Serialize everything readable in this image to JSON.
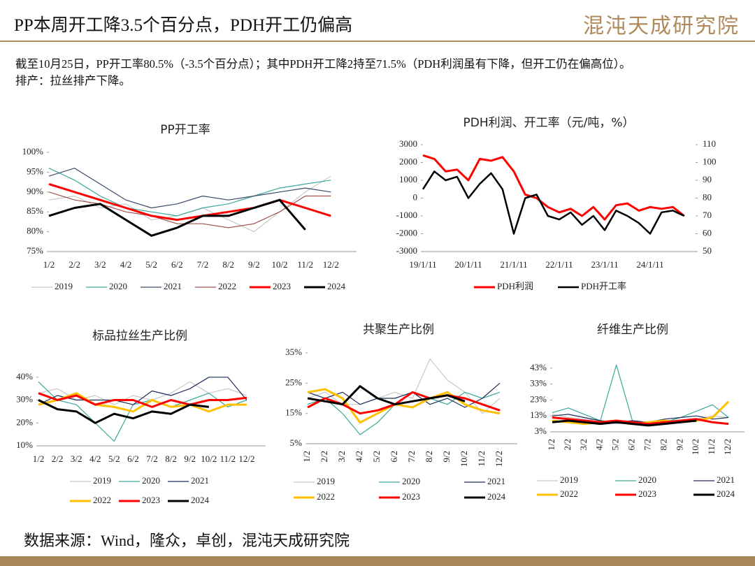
{
  "header": {
    "title": "PP本周开工降3.5个百分点，PDH开工仍偏高",
    "logo": "混沌天成研究院"
  },
  "text": {
    "summary": "截至10月25日，PP开工率80.5%（-3.5个百分点）；其中PDH开工降2持至71.5%（PDH利润虽有下降，但开工仍在偏高位）。",
    "schedule": "排产：拉丝排产下降。"
  },
  "footer": {
    "source": "数据来源：Wind，隆众，卓创，混沌天成研究院"
  },
  "chart_data": [
    {
      "type": "line",
      "title": "PP开工率",
      "legend": "bottom",
      "categories": [
        "1/2",
        "2/2",
        "3/2",
        "4/2",
        "5/2",
        "6/2",
        "7/2",
        "8/2",
        "9/2",
        "10/2",
        "11/2",
        "12/2"
      ],
      "ylim": [
        75,
        100
      ],
      "yticks": [
        {
          "value": 75,
          "label": "75%"
        },
        {
          "value": 80,
          "label": "80%"
        },
        {
          "value": 85,
          "label": "85%"
        },
        {
          "value": 90,
          "label": "90%"
        },
        {
          "value": 95,
          "label": "95%"
        },
        {
          "value": 100,
          "label": "100%"
        }
      ],
      "series": [
        {
          "name": "2019",
          "color": "#c8c8c8",
          "width": 1.2,
          "values": [
            88,
            89,
            86,
            87,
            83,
            84,
            86,
            83,
            80,
            85,
            90,
            94
          ]
        },
        {
          "name": "2020",
          "color": "#3aa89a",
          "width": 1.2,
          "values": [
            96,
            93,
            89,
            86,
            85,
            84,
            86,
            87,
            89,
            91,
            92,
            93
          ]
        },
        {
          "name": "2021",
          "color": "#3c4a6b",
          "width": 1.2,
          "values": [
            94,
            96,
            92,
            88,
            86,
            87,
            89,
            88,
            89,
            90,
            91,
            90
          ]
        },
        {
          "name": "2022",
          "color": "#a0524d",
          "width": 1.2,
          "values": [
            90,
            88,
            87,
            85,
            84,
            82,
            82,
            81,
            82,
            85,
            89,
            89
          ]
        },
        {
          "name": "2023",
          "color": "#ff0000",
          "width": 3,
          "values": [
            92,
            90,
            88,
            86,
            84,
            83,
            84,
            85,
            86,
            88,
            86,
            84
          ]
        },
        {
          "name": "2024",
          "color": "#000000",
          "width": 3,
          "values": [
            84,
            86,
            87,
            83,
            79,
            81,
            84,
            84,
            86,
            88,
            80.5,
            null
          ]
        }
      ]
    },
    {
      "type": "line",
      "title": "PDH利润、开工率（元/吨，%）",
      "legend": "bottom",
      "categories": [
        "19/1/11",
        null,
        null,
        null,
        "20/1/11",
        null,
        null,
        null,
        "21/1/11",
        null,
        null,
        null,
        "22/1/11",
        null,
        null,
        null,
        "23/1/11",
        null,
        null,
        null,
        "24/1/11",
        null,
        null,
        null
      ],
      "ylim": [
        -3000,
        3000
      ],
      "yticks": [
        -3000,
        -2000,
        -1000,
        0,
        1000,
        2000,
        3000
      ],
      "y2lim": [
        50,
        110
      ],
      "y2ticks": [
        50,
        60,
        70,
        80,
        90,
        100,
        110
      ],
      "series": [
        {
          "name": "PDH利润",
          "color": "#ff0000",
          "width": 3,
          "values": [
            2400,
            2200,
            1500,
            1600,
            1000,
            2200,
            2100,
            2300,
            1500,
            200,
            0,
            -500,
            -800,
            -600,
            -1000,
            -500,
            -1200,
            -400,
            -300,
            -700,
            -500,
            -600,
            -500,
            -1000
          ]
        },
        {
          "name": "PDH开工率",
          "color": "#000000",
          "width": 2.5,
          "axis": "y2",
          "values": [
            85,
            95,
            90,
            92,
            80,
            88,
            94,
            85,
            60,
            80,
            82,
            70,
            68,
            72,
            65,
            70,
            62,
            73,
            70,
            66,
            60,
            72,
            73,
            70
          ]
        }
      ]
    },
    {
      "type": "line",
      "title": "标品拉丝生产比例",
      "legend": "bottom",
      "categories": [
        "1/2",
        "2/2",
        "3/2",
        "4/2",
        "5/2",
        "6/2",
        "7/2",
        "8/2",
        "9/2",
        "10/2",
        "11/2",
        "12/2"
      ],
      "ylim": [
        10,
        43
      ],
      "yticks": [
        {
          "value": 10,
          "label": "10%"
        },
        {
          "value": 20,
          "label": "20%"
        },
        {
          "value": 30,
          "label": "30%"
        },
        {
          "value": 40,
          "label": "40%"
        }
      ],
      "series": [
        {
          "name": "2019",
          "color": "#c8c8c8",
          "width": 1.2,
          "values": [
            33,
            35,
            30,
            32,
            28,
            32,
            30,
            33,
            38,
            33,
            35,
            32
          ]
        },
        {
          "name": "2020",
          "color": "#3aa89a",
          "width": 1.2,
          "values": [
            38,
            30,
            28,
            20,
            12,
            28,
            30,
            27,
            30,
            33,
            27,
            30
          ]
        },
        {
          "name": "2021",
          "color": "#1f2f5a",
          "width": 1.2,
          "values": [
            28,
            32,
            30,
            30,
            30,
            28,
            34,
            32,
            35,
            40,
            40,
            30
          ]
        },
        {
          "name": "2022",
          "color": "#ffc000",
          "width": 3,
          "values": [
            28,
            30,
            33,
            28,
            27,
            25,
            30,
            27,
            28,
            25,
            28,
            28
          ]
        },
        {
          "name": "2023",
          "color": "#ff0000",
          "width": 3,
          "values": [
            33,
            30,
            32,
            28,
            30,
            30,
            27,
            30,
            28,
            30,
            30,
            31
          ]
        },
        {
          "name": "2024",
          "color": "#000000",
          "width": 3,
          "values": [
            30,
            26,
            25,
            20,
            24,
            22,
            25,
            24,
            28,
            27,
            null,
            null
          ]
        }
      ]
    },
    {
      "type": "line",
      "title": "共聚生产比例",
      "legend": "bottom",
      "rotate_labels": true,
      "categories": [
        "1/2",
        "2/2",
        "3/2",
        "4/2",
        "5/2",
        "6/2",
        "7/2",
        "8/2",
        "9/2",
        "10/2",
        "11/2",
        "12/2"
      ],
      "ylim": [
        5,
        35
      ],
      "yticks": [
        {
          "value": 5,
          "label": "5%"
        },
        {
          "value": 15,
          "label": "15%"
        },
        {
          "value": 25,
          "label": "25%"
        },
        {
          "value": 35,
          "label": "35%"
        }
      ],
      "series": [
        {
          "name": "2019",
          "color": "#c8c8c8",
          "width": 1.2,
          "values": [
            20,
            22,
            18,
            18,
            20,
            22,
            20,
            33,
            26,
            22,
            15,
            20
          ]
        },
        {
          "name": "2020",
          "color": "#3aa89a",
          "width": 1.2,
          "values": [
            18,
            20,
            15,
            8,
            12,
            18,
            22,
            20,
            18,
            22,
            20,
            22
          ]
        },
        {
          "name": "2021",
          "color": "#1f2f5a",
          "width": 1.2,
          "values": [
            22,
            20,
            22,
            18,
            20,
            20,
            22,
            18,
            20,
            17,
            20,
            25
          ]
        },
        {
          "name": "2022",
          "color": "#ffc000",
          "width": 3,
          "values": [
            22,
            23,
            20,
            12,
            15,
            18,
            17,
            20,
            22,
            18,
            16,
            15
          ]
        },
        {
          "name": "2023",
          "color": "#ff0000",
          "width": 3,
          "values": [
            17,
            20,
            18,
            15,
            16,
            18,
            22,
            20,
            21,
            20,
            18,
            16
          ]
        },
        {
          "name": "2024",
          "color": "#000000",
          "width": 3,
          "values": [
            20,
            19,
            18,
            24,
            20,
            18,
            19,
            20,
            21,
            19,
            null,
            null
          ]
        }
      ]
    },
    {
      "type": "line",
      "title": "纤维生产比例",
      "legend": "bottom",
      "rotate_labels": true,
      "categories": [
        "1/2",
        "2/2",
        "3/2",
        "4/2",
        "5/2",
        "6/2",
        "7/2",
        "8/2",
        "9/2",
        "10/2",
        "11/2",
        "12/2"
      ],
      "ylim": [
        3,
        46
      ],
      "yticks": [
        {
          "value": 3,
          "label": "3%"
        },
        {
          "value": 13,
          "label": "13%"
        },
        {
          "value": 23,
          "label": "23%"
        },
        {
          "value": 33,
          "label": "33%"
        },
        {
          "value": 43,
          "label": "43%"
        }
      ],
      "series": [
        {
          "name": "2019",
          "color": "#c8c8c8",
          "width": 1.2,
          "values": [
            14,
            12,
            11,
            10,
            8,
            9,
            8,
            9,
            10,
            11,
            13,
            12
          ]
        },
        {
          "name": "2020",
          "color": "#3aa89a",
          "width": 1.2,
          "values": [
            15,
            18,
            14,
            10,
            45,
            10,
            8,
            9,
            12,
            16,
            20,
            12
          ]
        },
        {
          "name": "2021",
          "color": "#1f2f5a",
          "width": 1.2,
          "values": [
            13,
            14,
            12,
            10,
            9,
            10,
            9,
            11,
            12,
            13,
            11,
            12
          ]
        },
        {
          "name": "2022",
          "color": "#ffc000",
          "width": 3,
          "values": [
            10,
            9,
            8,
            9,
            10,
            8,
            9,
            10,
            9,
            10,
            12,
            22
          ]
        },
        {
          "name": "2023",
          "color": "#ff0000",
          "width": 3,
          "values": [
            12,
            11,
            10,
            9,
            10,
            9,
            8,
            9,
            10,
            11,
            9,
            8
          ]
        },
        {
          "name": "2024",
          "color": "#000000",
          "width": 3,
          "values": [
            9,
            10,
            9,
            8,
            9,
            8,
            7,
            8,
            9,
            10,
            null,
            null
          ]
        }
      ]
    }
  ]
}
